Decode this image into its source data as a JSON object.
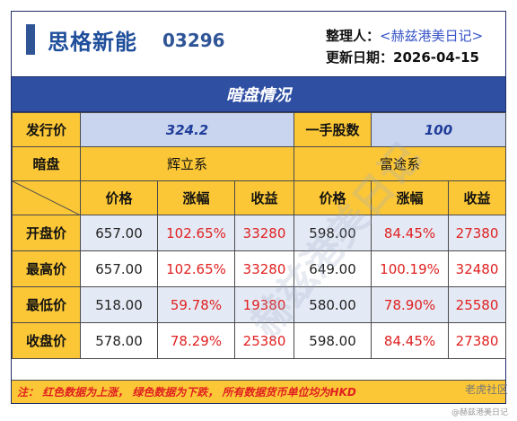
{
  "header": {
    "name": "思格新能",
    "code": "03296",
    "organizer_label": "整理人：",
    "organizer": "<赫兹港美日记>",
    "date_label": "更新日期：",
    "date": "2026-04-15"
  },
  "title": "暗盘情况",
  "issue": {
    "price_label": "发行价",
    "price": "324.2",
    "lot_label": "一手股数",
    "lot": "100"
  },
  "grey": {
    "label": "暗盘",
    "brokers": [
      "辉立系",
      "富途系"
    ],
    "columns": [
      "价格",
      "涨幅",
      "收益",
      "价格",
      "涨幅",
      "收益"
    ],
    "rows": [
      {
        "label": "开盘价",
        "cells": [
          "657.00",
          "102.65%",
          "33280",
          "598.00",
          "84.45%",
          "27380"
        ]
      },
      {
        "label": "最高价",
        "cells": [
          "657.00",
          "102.65%",
          "33280",
          "649.00",
          "100.19%",
          "32480"
        ]
      },
      {
        "label": "最低价",
        "cells": [
          "518.00",
          "59.78%",
          "19380",
          "580.00",
          "78.90%",
          "25580"
        ]
      },
      {
        "label": "收盘价",
        "cells": [
          "578.00",
          "78.29%",
          "25380",
          "598.00",
          "84.45%",
          "27380"
        ]
      }
    ]
  },
  "note": "注：  红色数据为上涨，  绿色数据为下跌，  所有数据货币单位均为HKD",
  "footer": {
    "brand": "老虎社区",
    "handle": "@赫兹港美日记"
  },
  "watermark": "赫兹港美日记",
  "colors": {
    "accent": "#2f4fa2",
    "label_bg": "#fbc737",
    "value_bg": "#c9d5ee",
    "up": "#e02020"
  }
}
